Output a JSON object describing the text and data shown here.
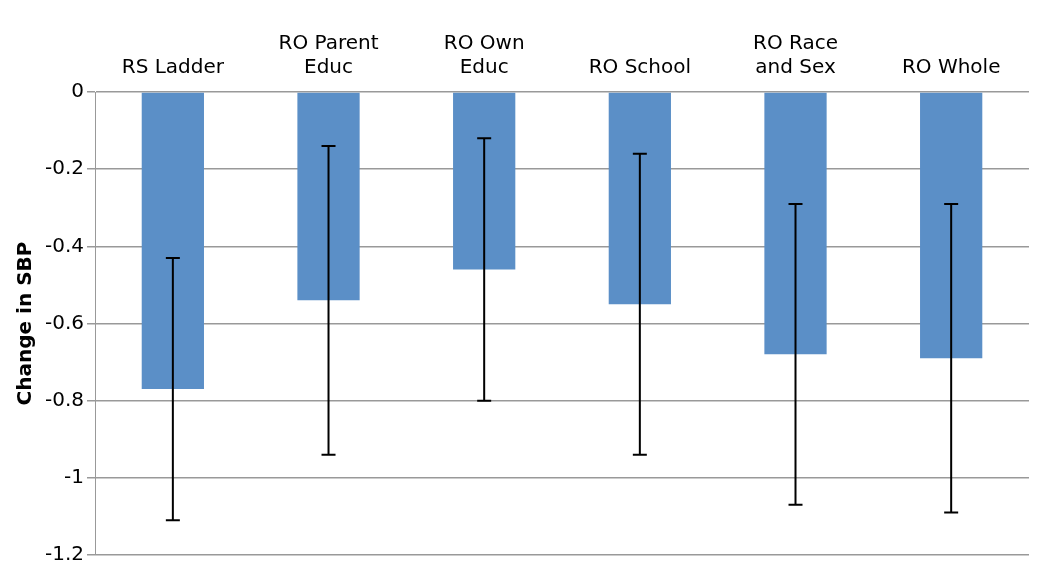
{
  "chart_data": {
    "type": "bar",
    "ylabel": "Change in SBP",
    "categories": [
      "RS Ladder",
      "RO Parent Educ",
      "RO Own Educ",
      "RO School",
      "RO Race and Sex",
      "RO Whole"
    ],
    "values": [
      -0.77,
      -0.54,
      -0.46,
      -0.55,
      -0.68,
      -0.69
    ],
    "errors": [
      0.34,
      0.4,
      0.34,
      0.39,
      0.39,
      0.4
    ],
    "color": "#5b8fc7",
    "ylim": [
      -1.2,
      0
    ],
    "yticks": [
      0,
      -0.2,
      -0.4,
      -0.6,
      -0.8,
      -1,
      -1.2
    ],
    "grid": "y",
    "legend": false
  }
}
